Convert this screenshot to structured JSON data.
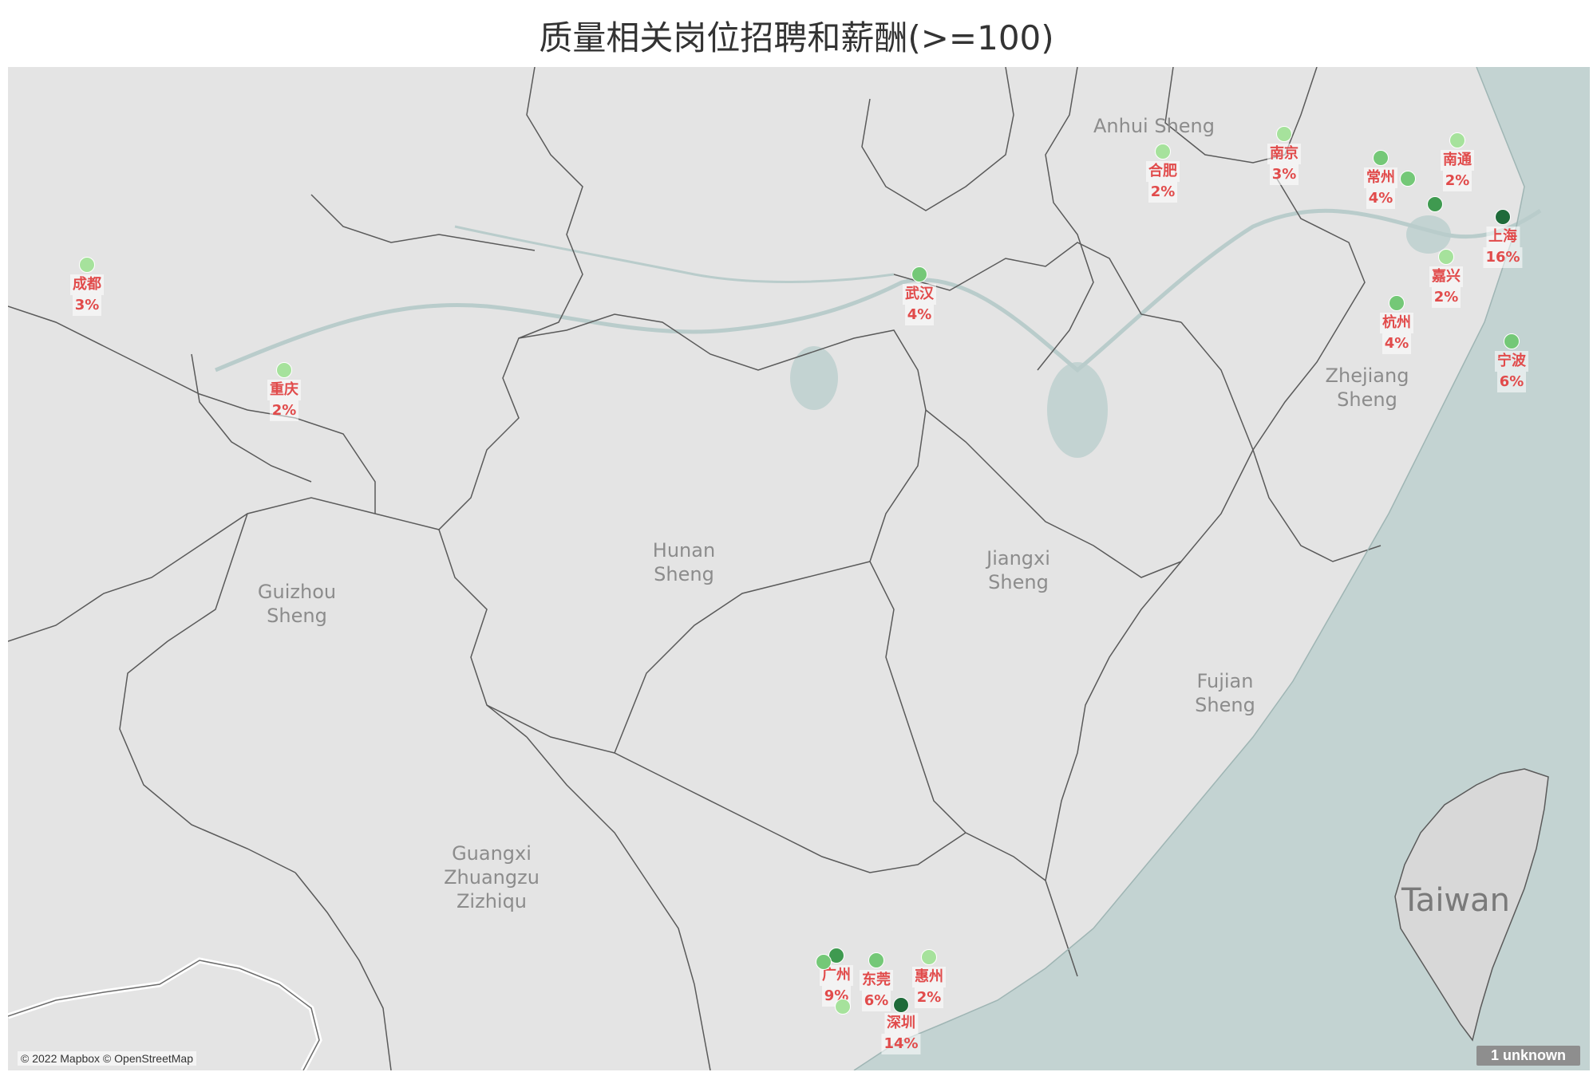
{
  "title": "质量相关岗位招聘和薪酬(>=100)",
  "colors": {
    "land": "#e4e4e4",
    "sea": "#c3d3d2",
    "border": "#5a5a5a",
    "label": "#e14b4b",
    "dot_light": "#a6e29c",
    "dot_mid": "#74c877",
    "dot_dark": "#3f9a50",
    "dot_darkest": "#1f6b3a"
  },
  "regions": [
    {
      "id": "anhui",
      "name": "Anhui Sheng"
    },
    {
      "id": "zhejiang",
      "name": "Zhejiang Sheng"
    },
    {
      "id": "hunan",
      "name": "Hunan Sheng"
    },
    {
      "id": "jiangxi",
      "name": "Jiangxi Sheng"
    },
    {
      "id": "guizhou",
      "name": "Guizhou Sheng"
    },
    {
      "id": "fujian",
      "name": "Fujian Sheng"
    },
    {
      "id": "guangxi",
      "name": "Guangxi Zhuangzu Zizhiqu"
    },
    {
      "id": "taiwan",
      "name": "Taiwan"
    }
  ],
  "cities": [
    {
      "id": "chengdu",
      "name": "成都",
      "pct": "3%",
      "shade": "dot_light"
    },
    {
      "id": "chongqing",
      "name": "重庆",
      "pct": "2%",
      "shade": "dot_light"
    },
    {
      "id": "wuhan",
      "name": "武汉",
      "pct": "4%",
      "shade": "dot_mid"
    },
    {
      "id": "hefei",
      "name": "合肥",
      "pct": "2%",
      "shade": "dot_light"
    },
    {
      "id": "nanjing",
      "name": "南京",
      "pct": "3%",
      "shade": "dot_light"
    },
    {
      "id": "changzhou",
      "name": "常州",
      "pct": "4%",
      "shade": "dot_mid"
    },
    {
      "id": "nantong",
      "name": "南通",
      "pct": "2%",
      "shade": "dot_light"
    },
    {
      "id": "shanghai",
      "name": "上海",
      "pct": "16%",
      "shade": "dot_darkest"
    },
    {
      "id": "jiaxing",
      "name": "嘉兴",
      "pct": "2%",
      "shade": "dot_light"
    },
    {
      "id": "hangzhou",
      "name": "杭州",
      "pct": "4%",
      "shade": "dot_mid"
    },
    {
      "id": "ningbo",
      "name": "宁波",
      "pct": "6%",
      "shade": "dot_mid"
    },
    {
      "id": "guangzhou",
      "name": "广州",
      "pct": "9%",
      "shade": "dot_dark"
    },
    {
      "id": "dongguan",
      "name": "东莞",
      "pct": "6%",
      "shade": "dot_mid"
    },
    {
      "id": "huizhou",
      "name": "惠州",
      "pct": "2%",
      "shade": "dot_light"
    },
    {
      "id": "shenzhen",
      "name": "深圳",
      "pct": "14%",
      "shade": "dot_darkest"
    }
  ],
  "extra_dots": [
    {
      "id": "wuxi",
      "shade": "dot_mid"
    },
    {
      "id": "suzhou",
      "shade": "dot_dark"
    },
    {
      "id": "foshan",
      "shade": "dot_mid"
    },
    {
      "id": "zhongshan",
      "shade": "dot_light"
    }
  ],
  "credit": "© 2022 Mapbox © OpenStreetMap",
  "unknown_badge": "1 unknown"
}
